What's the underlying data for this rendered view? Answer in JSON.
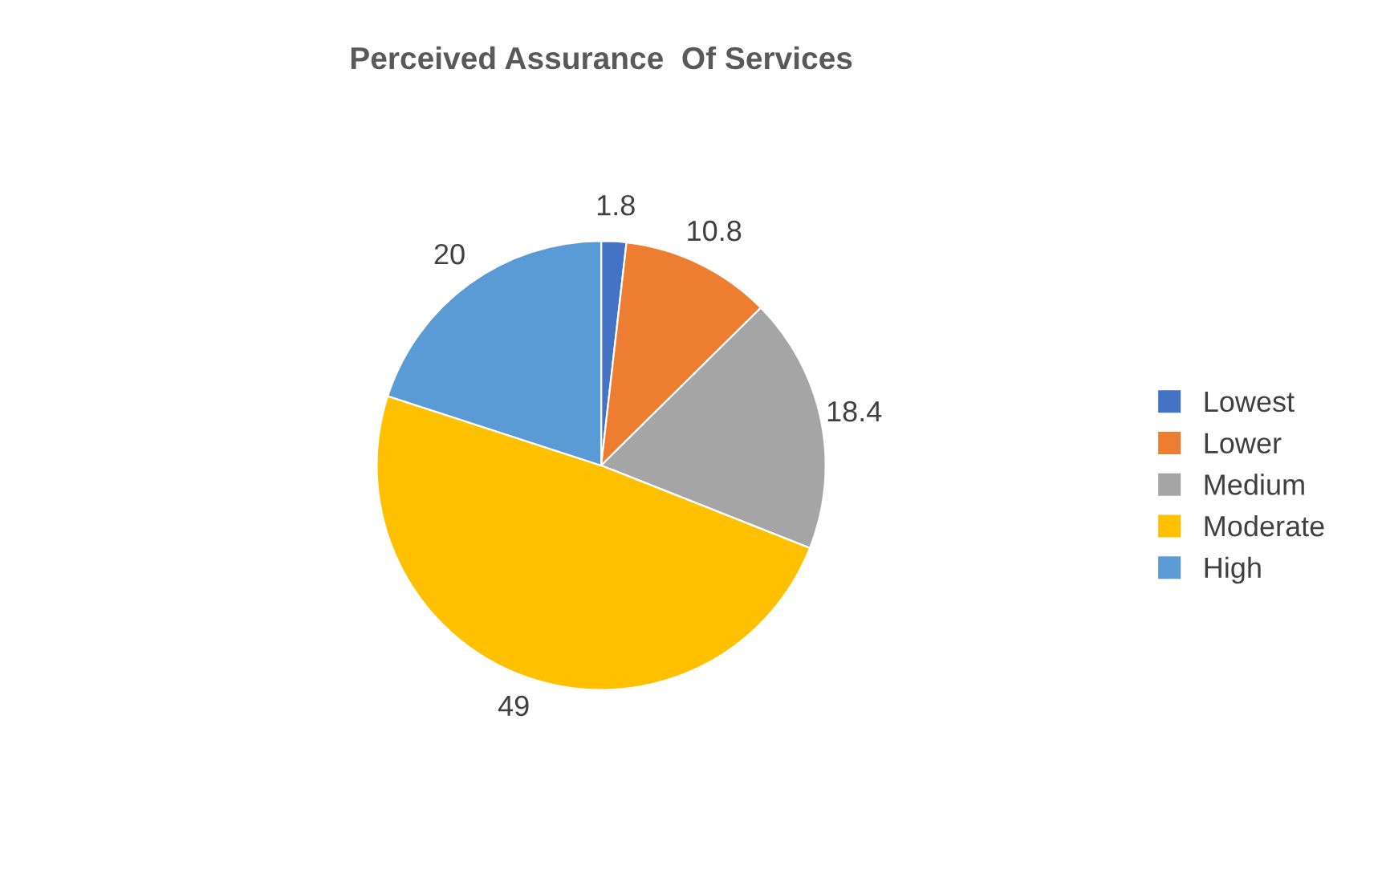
{
  "chart_data": {
    "type": "pie",
    "title": "Perceived Assurance  Of Services",
    "categories": [
      "Lowest",
      "Lower",
      "Medium",
      "Moderate",
      "High"
    ],
    "values": [
      1.8,
      10.8,
      18.4,
      49,
      20
    ],
    "colors": [
      "#4472c4",
      "#ed7d31",
      "#a5a5a5",
      "#ffc000",
      "#5b9bd5"
    ],
    "data_labels": true,
    "legend": "right"
  }
}
